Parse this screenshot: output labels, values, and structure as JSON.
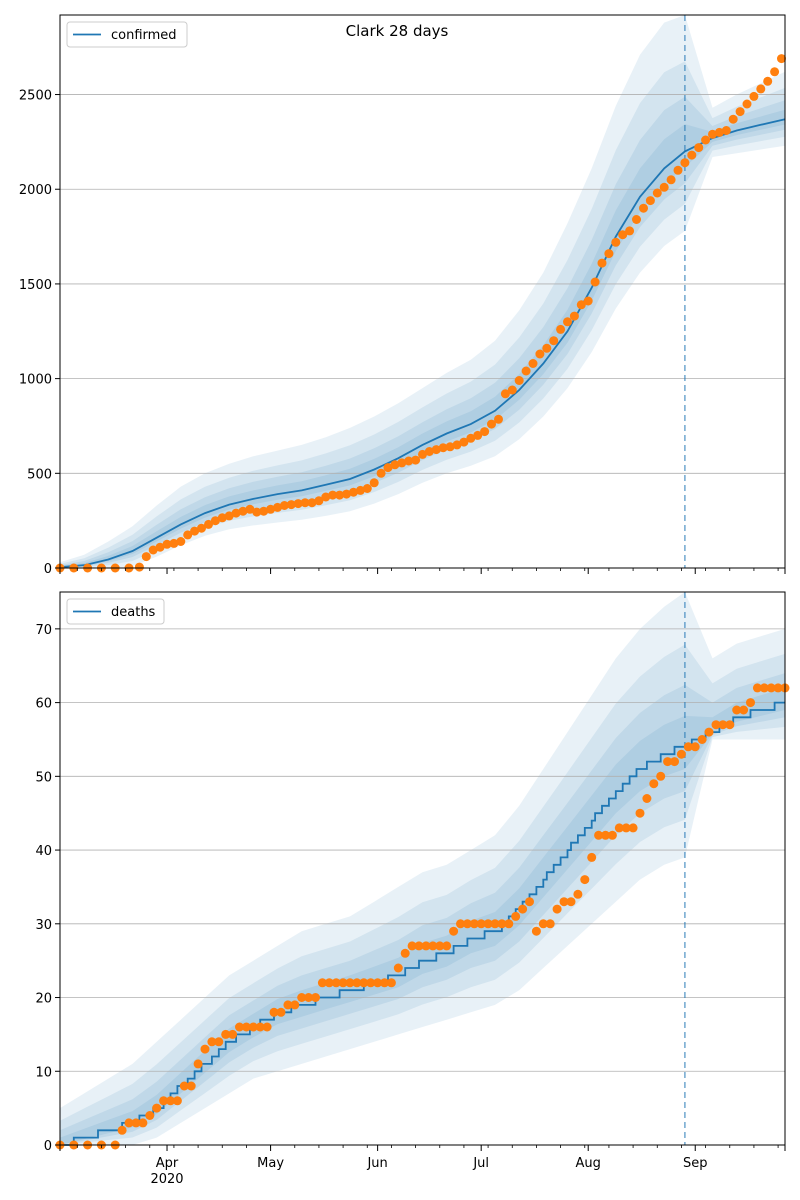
{
  "title": "Clark 28 days",
  "colors": {
    "line": "#1f77b4",
    "dots": "#ff7f0e",
    "band": "#1f77b4",
    "grid": "#b0b0b0"
  },
  "x_axis": {
    "month_ticks": [
      {
        "label": "Apr",
        "day": 31
      },
      {
        "label": "May",
        "day": 61
      },
      {
        "label": "Jun",
        "day": 92
      },
      {
        "label": "Jul",
        "day": 122
      },
      {
        "label": "Aug",
        "day": 153
      },
      {
        "label": "Sep",
        "day": 184
      }
    ],
    "year_label": "2020",
    "start_date": "2020-03-01",
    "range_days": [
      0,
      210
    ],
    "forecast_start_day": 181
  },
  "chart_data": [
    {
      "type": "line",
      "legend": "confirmed",
      "legend_position": "top-left",
      "grid": true,
      "ylim": [
        0,
        2920
      ],
      "yticks": [
        0,
        500,
        1000,
        1500,
        2000,
        2500
      ],
      "model": {
        "x": [
          0,
          7,
          14,
          21,
          28,
          35,
          42,
          49,
          56,
          63,
          70,
          77,
          84,
          91,
          98,
          105,
          112,
          119,
          126,
          133,
          140,
          147,
          154,
          161,
          168,
          175,
          181,
          189,
          196,
          203,
          210
        ],
        "y": [
          5,
          15,
          45,
          90,
          160,
          230,
          290,
          335,
          365,
          390,
          410,
          440,
          470,
          520,
          580,
          650,
          710,
          760,
          830,
          940,
          1080,
          1250,
          1480,
          1750,
          1960,
          2110,
          2200,
          2270,
          2310,
          2340,
          2370
        ],
        "band_outer_lo": [
          0,
          0,
          0,
          10,
          60,
          120,
          170,
          205,
          225,
          240,
          255,
          275,
          300,
          340,
          390,
          450,
          500,
          540,
          590,
          680,
          800,
          950,
          1140,
          1370,
          1560,
          1700,
          1780,
          2170,
          2190,
          2210,
          2230
        ],
        "band_outer_hi": [
          30,
          70,
          140,
          220,
          330,
          430,
          500,
          550,
          590,
          620,
          650,
          690,
          740,
          800,
          870,
          950,
          1030,
          1100,
          1200,
          1360,
          1560,
          1820,
          2110,
          2440,
          2710,
          2880,
          2920,
          2430,
          2500,
          2560,
          2620
        ]
      },
      "observed": {
        "x": [
          0,
          4,
          8,
          12,
          16,
          20,
          23,
          25,
          27,
          29,
          31,
          33,
          35,
          37,
          39,
          41,
          43,
          45,
          47,
          49,
          51,
          53,
          55,
          57,
          59,
          61,
          63,
          65,
          67,
          69,
          71,
          73,
          75,
          77,
          79,
          81,
          83,
          85,
          87,
          89,
          91,
          93,
          95,
          97,
          99,
          101,
          103,
          105,
          107,
          109,
          111,
          113,
          115,
          117,
          119,
          121,
          123,
          125,
          127,
          129,
          131,
          133,
          135,
          137,
          139,
          141,
          143,
          145,
          147,
          149,
          151,
          153,
          155,
          157,
          159,
          161,
          163,
          165,
          167,
          169,
          171,
          173,
          175,
          177,
          179,
          181,
          183,
          185,
          187,
          189,
          191,
          193,
          195,
          197,
          199,
          201,
          203,
          205,
          207,
          209
        ],
        "y": [
          0,
          0,
          0,
          0,
          0,
          0,
          5,
          60,
          95,
          110,
          125,
          130,
          140,
          175,
          195,
          210,
          230,
          250,
          265,
          275,
          290,
          300,
          310,
          295,
          300,
          310,
          320,
          330,
          335,
          340,
          345,
          345,
          355,
          375,
          385,
          385,
          390,
          400,
          410,
          420,
          450,
          500,
          530,
          545,
          555,
          565,
          570,
          600,
          615,
          625,
          635,
          640,
          650,
          665,
          685,
          700,
          720,
          760,
          785,
          920,
          940,
          990,
          1040,
          1080,
          1130,
          1160,
          1200,
          1260,
          1300,
          1330,
          1390,
          1410,
          1510,
          1610,
          1660,
          1720,
          1760,
          1780,
          1840,
          1900,
          1940,
          1980,
          2010,
          2050,
          2100,
          2140,
          2180,
          2220,
          2260,
          2290,
          2300,
          2310,
          2370,
          2410,
          2450,
          2490,
          2530,
          2570,
          2620,
          2690
        ]
      }
    },
    {
      "type": "line",
      "legend": "deaths",
      "legend_position": "top-left",
      "grid": true,
      "ylim": [
        0,
        75
      ],
      "yticks": [
        0,
        10,
        20,
        30,
        40,
        50,
        60,
        70
      ],
      "model": {
        "x": [
          0,
          7,
          14,
          21,
          28,
          35,
          42,
          49,
          56,
          63,
          70,
          77,
          84,
          91,
          98,
          105,
          112,
          119,
          126,
          133,
          140,
          147,
          154,
          161,
          168,
          175,
          181,
          189,
          196,
          203,
          210
        ],
        "y": [
          0,
          1,
          2,
          3,
          5,
          8,
          11,
          14,
          16,
          18,
          19,
          20,
          21,
          22,
          23,
          25,
          26,
          28,
          29,
          32,
          36,
          40,
          44,
          48,
          51,
          53,
          54,
          56,
          58,
          59,
          60
        ],
        "band_outer_lo": [
          0,
          0,
          0,
          0,
          1,
          3,
          5,
          7,
          9,
          10,
          11,
          12,
          13,
          14,
          15,
          16,
          17,
          18,
          19,
          21,
          24,
          27,
          30,
          33,
          36,
          38,
          39,
          55,
          55,
          55,
          55
        ],
        "band_outer_hi": [
          5,
          7,
          9,
          11,
          14,
          17,
          20,
          23,
          25,
          27,
          29,
          30,
          31,
          33,
          35,
          37,
          38,
          40,
          42,
          46,
          51,
          56,
          61,
          66,
          70,
          73,
          75,
          66,
          68,
          69,
          70
        ]
      },
      "observed": {
        "x": [
          0,
          4,
          8,
          12,
          16,
          18,
          20,
          22,
          24,
          26,
          28,
          30,
          32,
          34,
          36,
          38,
          40,
          42,
          44,
          46,
          48,
          50,
          52,
          54,
          56,
          58,
          60,
          62,
          64,
          66,
          68,
          70,
          72,
          74,
          76,
          78,
          80,
          82,
          84,
          86,
          88,
          90,
          92,
          94,
          96,
          98,
          100,
          102,
          104,
          106,
          108,
          110,
          112,
          114,
          116,
          118,
          120,
          122,
          124,
          126,
          128,
          130,
          132,
          134,
          136,
          138,
          140,
          142,
          144,
          146,
          148,
          150,
          152,
          154,
          156,
          158,
          160,
          162,
          164,
          166,
          168,
          170,
          172,
          174,
          176,
          178,
          180,
          182,
          184,
          186,
          188,
          190,
          192,
          194,
          196,
          198,
          200,
          202,
          204,
          206,
          208,
          210
        ],
        "y": [
          0,
          0,
          0,
          0,
          0,
          2,
          3,
          3,
          3,
          4,
          5,
          6,
          6,
          6,
          8,
          8,
          11,
          13,
          14,
          14,
          15,
          15,
          16,
          16,
          16,
          16,
          16,
          18,
          18,
          19,
          19,
          20,
          20,
          20,
          22,
          22,
          22,
          22,
          22,
          22,
          22,
          22,
          22,
          22,
          22,
          24,
          26,
          27,
          27,
          27,
          27,
          27,
          27,
          29,
          30,
          30,
          30,
          30,
          30,
          30,
          30,
          30,
          31,
          32,
          33,
          29,
          30,
          30,
          32,
          33,
          33,
          34,
          36,
          39,
          42,
          42,
          42,
          43,
          43,
          43,
          45,
          47,
          49,
          50,
          52,
          52,
          53,
          54,
          54,
          55,
          56,
          57,
          57,
          57,
          59,
          59,
          60,
          62,
          62,
          62,
          62,
          62
        ]
      }
    }
  ]
}
